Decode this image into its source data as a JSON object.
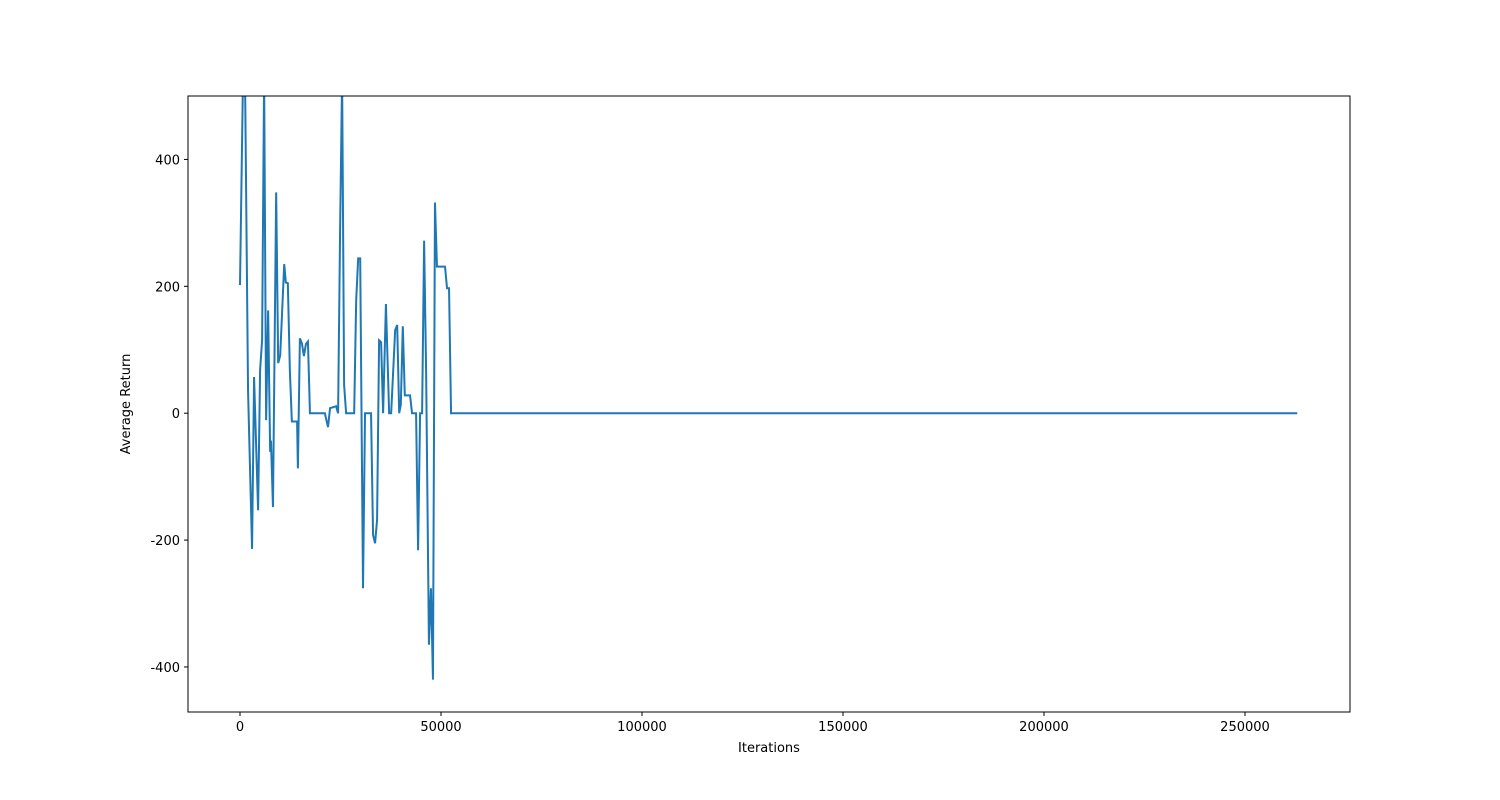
{
  "chart_data": {
    "type": "line",
    "xlabel": "Iterations",
    "ylabel": "Average Return",
    "x": [
      0,
      750,
      1250,
      2000,
      3000,
      3500,
      4500,
      5000,
      5500,
      6000,
      6500,
      7000,
      7500,
      7700,
      8200,
      9000,
      9500,
      10000,
      11000,
      11400,
      11900,
      12400,
      12900,
      14200,
      14400,
      14900,
      15400,
      15900,
      16400,
      16900,
      17400,
      21100,
      21900,
      22400,
      23900,
      24400,
      24900,
      25400,
      25900,
      26400,
      28400,
      28900,
      29400,
      29900,
      30600,
      31100,
      32600,
      33100,
      33600,
      34100,
      34600,
      35100,
      35600,
      36300,
      37100,
      37600,
      38600,
      39100,
      39600,
      40000,
      40500,
      41000,
      41500,
      42300,
      42800,
      43800,
      44300,
      44800,
      45300,
      45800,
      46300,
      47000,
      47500,
      48000,
      48500,
      49000,
      51000,
      51500,
      52000,
      52500,
      263000
    ],
    "series": [
      {
        "name": "Average Return",
        "color": "#1f77b4",
        "values": [
          202,
          530,
          530,
          36,
          -214,
          57,
          -153,
          68,
          115,
          530,
          -11,
          162,
          -61,
          -43,
          -148,
          348,
          79,
          91,
          235,
          206,
          205,
          68,
          -13,
          -13,
          -87,
          118,
          110,
          90,
          109,
          113,
          0,
          0,
          -22,
          8,
          11,
          0,
          288,
          530,
          44,
          0,
          0,
          178,
          244,
          244,
          -276,
          0,
          0,
          -192,
          -205,
          -168,
          115,
          112,
          0,
          172,
          0,
          0,
          131,
          139,
          0,
          13,
          137,
          28,
          28,
          28,
          0,
          0,
          -216,
          0,
          0,
          272,
          65,
          -365,
          -276,
          -420,
          332,
          231,
          231,
          197,
          197,
          0,
          0
        ]
      }
    ],
    "xlim": [
      -12935,
      276119
    ],
    "ylim": [
      -471,
      500
    ],
    "xticks": [
      0,
      50000,
      100000,
      150000,
      200000,
      250000
    ],
    "yticks": [
      -400,
      -200,
      0,
      200,
      400
    ],
    "grid": false
  }
}
